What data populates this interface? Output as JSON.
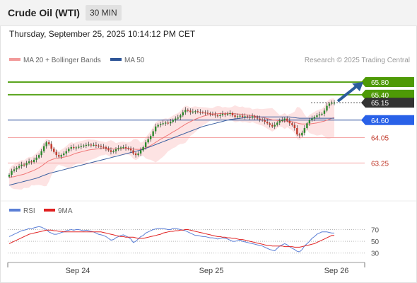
{
  "header": {
    "title": "Crude Oil (WTI)",
    "timeframe": "30 MIN"
  },
  "datetime": "Thursday, September 25, 2025 10:14:12 PM CET",
  "legend": {
    "ma20": "MA 20 + Bollinger Bands",
    "ma50": "MA 50",
    "credit": "Research © 2025 Trading Central",
    "rsi": "RSI",
    "rsi_ma": "9MA"
  },
  "colors": {
    "ma20": "#f07878",
    "ma50": "#3a5fa0",
    "bands": "#fcdada",
    "bull": "#2b8a2b",
    "bear": "#c0392b",
    "resistance": "#5aa51e",
    "support": "#f4a7a7",
    "pivot": "#2a4f9a",
    "arrow": "#2b5d9c",
    "rsi": "#5b7fd6",
    "rsi_ma": "#e02020"
  },
  "chart_data": [
    {
      "type": "candlestick",
      "x_ticks": [
        "Sep 24",
        "Sep 25",
        "Sep 26"
      ],
      "ylim": [
        62.1,
        66.2
      ],
      "levels": [
        {
          "value": 65.8,
          "label": "65.80",
          "kind": "resistance"
        },
        {
          "value": 65.4,
          "label": "65.40",
          "kind": "resistance"
        },
        {
          "value": 65.15,
          "label": "65.15",
          "kind": "last"
        },
        {
          "value": 64.6,
          "label": "64.60",
          "kind": "pivot"
        },
        {
          "value": 64.05,
          "label": "64.05",
          "kind": "support"
        },
        {
          "value": 63.25,
          "label": "63.25",
          "kind": "support"
        }
      ],
      "close": [
        62.88,
        63.0,
        63.05,
        63.1,
        63.15,
        63.2,
        63.18,
        63.25,
        63.3,
        63.28,
        63.35,
        63.42,
        63.5,
        63.62,
        63.78,
        63.9,
        63.85,
        63.7,
        63.6,
        63.5,
        63.45,
        63.5,
        63.55,
        63.62,
        63.7,
        63.75,
        63.72,
        63.74,
        63.76,
        63.78,
        63.8,
        63.82,
        63.83,
        63.82,
        63.82,
        63.8,
        63.78,
        63.76,
        63.75,
        63.7,
        63.65,
        63.6,
        63.62,
        63.68,
        63.72,
        63.74,
        63.75,
        63.72,
        63.7,
        63.65,
        63.55,
        63.5,
        63.55,
        63.65,
        63.75,
        63.9,
        64.0,
        64.1,
        64.25,
        64.4,
        64.45,
        64.48,
        64.5,
        64.52,
        64.5,
        64.55,
        64.6,
        64.65,
        64.68,
        64.75,
        64.85,
        64.92,
        64.9,
        64.85,
        64.87,
        64.88,
        64.86,
        64.85,
        64.84,
        64.83,
        64.82,
        64.8,
        64.78,
        64.75,
        64.73,
        64.76,
        64.8,
        64.78,
        64.8,
        64.82,
        64.75,
        64.7,
        64.72,
        64.74,
        64.7,
        64.72,
        64.7,
        64.68,
        64.72,
        64.68,
        64.65,
        64.62,
        64.6,
        64.55,
        64.5,
        64.45,
        64.4,
        64.45,
        64.52,
        64.58,
        64.6,
        64.65,
        64.58,
        64.5,
        64.45,
        64.35,
        64.15,
        64.12,
        64.2,
        64.35,
        64.5,
        64.6,
        64.65,
        64.7,
        64.75,
        64.78,
        64.8,
        64.9,
        65.05,
        65.12,
        65.15,
        65.15
      ],
      "ma20": [
        62.8,
        62.81,
        62.82,
        62.84,
        62.86,
        62.88,
        62.9,
        62.93,
        62.96,
        62.99,
        63.02,
        63.06,
        63.1,
        63.15,
        63.21,
        63.27,
        63.32,
        63.35,
        63.38,
        63.4,
        63.41,
        63.42,
        63.43,
        63.45,
        63.47,
        63.5,
        63.53,
        63.56,
        63.58,
        63.6,
        63.62,
        63.64,
        63.66,
        63.67,
        63.68,
        63.69,
        63.7,
        63.71,
        63.71,
        63.71,
        63.71,
        63.7,
        63.69,
        63.69,
        63.7,
        63.7,
        63.71,
        63.71,
        63.71,
        63.7,
        63.69,
        63.68,
        63.68,
        63.68,
        63.7,
        63.73,
        63.76,
        63.8,
        63.85,
        63.9,
        63.95,
        64.0,
        64.04,
        64.09,
        64.13,
        64.18,
        64.23,
        64.27,
        64.32,
        64.37,
        64.42,
        64.47,
        64.51,
        64.55,
        64.59,
        64.63,
        64.66,
        64.69,
        64.72,
        64.74,
        64.76,
        64.78,
        64.79,
        64.8,
        64.8,
        64.81,
        64.81,
        64.81,
        64.81,
        64.81,
        64.8,
        64.8,
        64.79,
        64.79,
        64.78,
        64.77,
        64.76,
        64.75,
        64.74,
        64.73,
        64.72,
        64.7,
        64.69,
        64.67,
        64.65,
        64.63,
        64.61,
        64.6,
        64.59,
        64.58,
        64.58,
        64.57,
        64.57,
        64.56,
        64.55,
        64.53,
        64.51,
        64.49,
        64.48,
        64.48,
        64.48,
        64.48,
        64.49,
        64.5,
        64.51,
        64.53,
        64.55,
        64.57,
        64.6,
        64.63,
        64.66,
        64.68
      ],
      "ma50": [
        62.55,
        62.57,
        62.59,
        62.61,
        62.63,
        62.65,
        62.67,
        62.69,
        62.71,
        62.73,
        62.75,
        62.77,
        62.8,
        62.83,
        62.86,
        62.89,
        62.92,
        62.94,
        62.96,
        62.98,
        63.0,
        63.02,
        63.04,
        63.06,
        63.08,
        63.1,
        63.12,
        63.14,
        63.16,
        63.18,
        63.2,
        63.22,
        63.24,
        63.26,
        63.28,
        63.3,
        63.32,
        63.34,
        63.36,
        63.38,
        63.4,
        63.42,
        63.44,
        63.46,
        63.48,
        63.5,
        63.52,
        63.54,
        63.56,
        63.58,
        63.6,
        63.62,
        63.64,
        63.66,
        63.68,
        63.71,
        63.74,
        63.77,
        63.8,
        63.83,
        63.86,
        63.89,
        63.92,
        63.95,
        63.98,
        64.01,
        64.04,
        64.07,
        64.1,
        64.13,
        64.16,
        64.19,
        64.22,
        64.25,
        64.28,
        64.31,
        64.34,
        64.37,
        64.4,
        64.42,
        64.44,
        64.46,
        64.48,
        64.5,
        64.52,
        64.54,
        64.56,
        64.58,
        64.6,
        64.62,
        64.63,
        64.64,
        64.65,
        64.66,
        64.67,
        64.68,
        64.69,
        64.7,
        64.7,
        64.7,
        64.7,
        64.7,
        64.7,
        64.7,
        64.7,
        64.7,
        64.7,
        64.7,
        64.7,
        64.7,
        64.7,
        64.7,
        64.7,
        64.7,
        64.69,
        64.68,
        64.67,
        64.66,
        64.66,
        64.66,
        64.66,
        64.66,
        64.66,
        64.66,
        64.66,
        64.66,
        64.66,
        64.66,
        64.66,
        64.66,
        64.66,
        64.66
      ]
    },
    {
      "type": "line",
      "ylim": [
        20,
        85
      ],
      "y_ticks": [
        70,
        50,
        30
      ],
      "series": [
        {
          "name": "RSI",
          "values": [
            58,
            60,
            62,
            64,
            66,
            68,
            69,
            70,
            72,
            71,
            73,
            74,
            75,
            74,
            72,
            70,
            66,
            64,
            62,
            62,
            63,
            65,
            66,
            68,
            69,
            70,
            69,
            70,
            70,
            69,
            68,
            69,
            68,
            67,
            66,
            64,
            62,
            61,
            60,
            58,
            55,
            52,
            53,
            56,
            58,
            60,
            61,
            59,
            57,
            54,
            48,
            50,
            54,
            58,
            60,
            64,
            66,
            68,
            70,
            71,
            72,
            72,
            72,
            71,
            70,
            70,
            72,
            72,
            71,
            70,
            69,
            68,
            66,
            64,
            62,
            60,
            60,
            59,
            58,
            58,
            57,
            56,
            56,
            55,
            54,
            55,
            56,
            55,
            54,
            52,
            50,
            50,
            51,
            52,
            50,
            49,
            48,
            47,
            46,
            45,
            44,
            43,
            42,
            40,
            38,
            36,
            35,
            34,
            38,
            42,
            44,
            46,
            44,
            41,
            38,
            36,
            33,
            32,
            36,
            42,
            46,
            50,
            55,
            58,
            62,
            64,
            66,
            66,
            66,
            65,
            64,
            64
          ]
        },
        {
          "name": "9MA",
          "values": [
            46,
            48,
            50,
            52,
            54,
            56,
            58,
            60,
            62,
            63,
            64,
            65,
            66,
            67,
            68,
            69,
            69,
            69,
            68,
            68,
            67,
            67,
            66,
            66,
            66,
            66,
            66,
            66,
            66,
            66,
            66,
            66,
            66,
            66,
            66,
            66,
            66,
            66,
            65,
            64,
            63,
            62,
            61,
            60,
            59,
            58,
            58,
            57,
            57,
            57,
            57,
            56,
            55,
            55,
            55,
            56,
            57,
            58,
            59,
            60,
            61,
            62,
            64,
            65,
            66,
            67,
            67,
            68,
            68,
            69,
            69,
            70,
            70,
            69,
            68,
            67,
            66,
            65,
            64,
            63,
            62,
            61,
            60,
            59,
            58,
            58,
            57,
            57,
            56,
            56,
            55,
            55,
            54,
            53,
            53,
            52,
            51,
            50,
            49,
            48,
            47,
            46,
            45,
            44,
            43,
            43,
            42,
            42,
            42,
            42,
            42,
            41,
            41,
            41,
            41,
            40,
            40,
            40,
            41,
            42,
            43,
            44,
            45,
            46,
            48,
            50,
            52,
            54,
            56,
            58,
            60,
            60
          ]
        }
      ]
    }
  ]
}
